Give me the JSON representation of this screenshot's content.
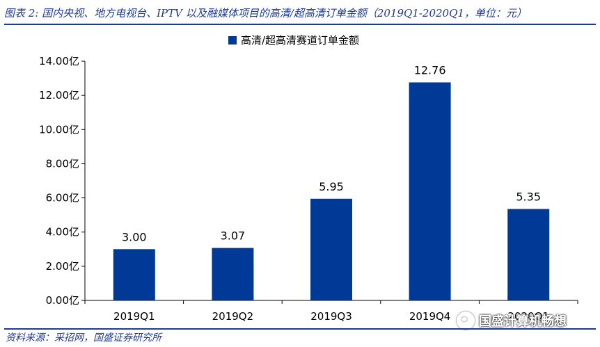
{
  "caption": "图表 2: 国内央视、地方电视台、IPTV 以及融媒体项目的高清/超高清订单金额（2019Q1-2020Q1，单位：元）",
  "source": "资料来源：采招网，国盛证券研究所",
  "watermark": "国盛计算机畅想",
  "colors": {
    "bar": "#003a96",
    "rule": "#1f3a93",
    "axis": "#000000"
  },
  "chart_data": {
    "type": "bar",
    "categories": [
      "2019Q1",
      "2019Q2",
      "2019Q3",
      "2019Q4",
      "2020Q1"
    ],
    "series": [
      {
        "name": "高清/超高清赛道订单金额",
        "values": [
          3.0,
          3.07,
          5.95,
          12.76,
          5.35
        ]
      }
    ],
    "data_labels": [
      "3.00",
      "3.07",
      "5.95",
      "12.76",
      "5.35"
    ],
    "yticks": [
      "0.00亿",
      "2.00亿",
      "4.00亿",
      "6.00亿",
      "8.00亿",
      "10.00亿",
      "12.00亿",
      "14.00亿"
    ],
    "ylim": [
      0,
      14
    ],
    "legend_position": "top",
    "grid": false
  }
}
